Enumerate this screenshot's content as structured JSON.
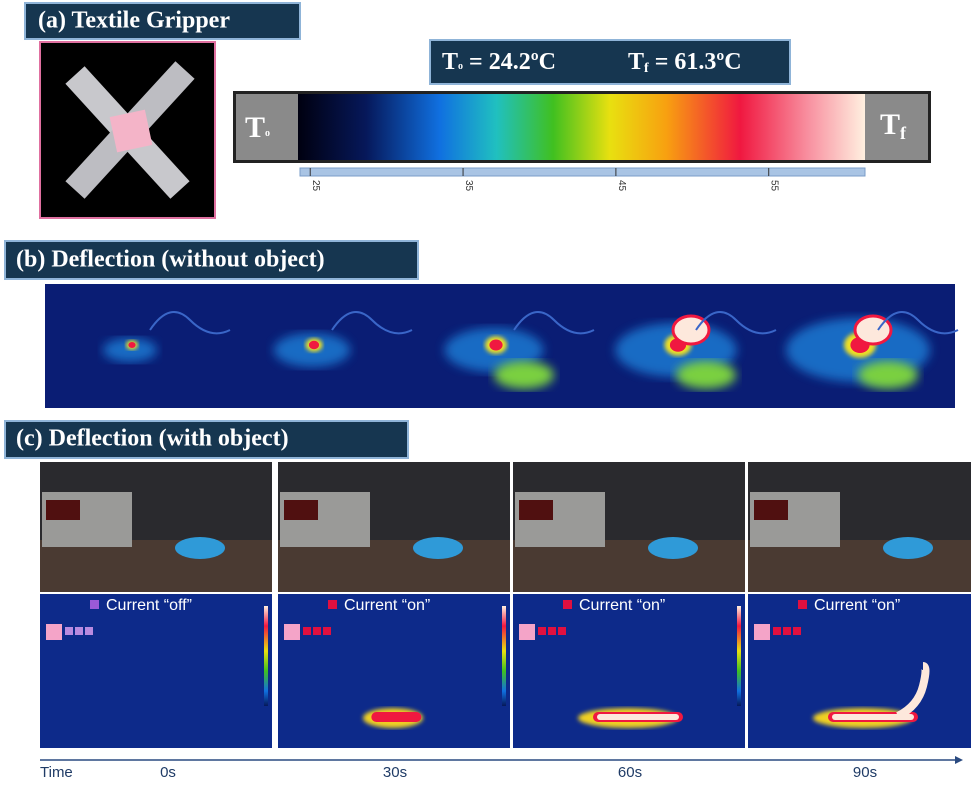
{
  "panel_a": {
    "title": "(a) Textile Gripper",
    "temp_initial": {
      "main": "T",
      "sub": "o",
      "rest": " = 24.2ºC"
    },
    "temp_final": {
      "main": "T",
      "sub": "f",
      "rest": " = 61.3ºC"
    },
    "colorbar": {
      "left_label": {
        "main": "T",
        "sub": "o"
      },
      "right_label": {
        "main": "T",
        "sub": "f"
      },
      "lim": [
        24.2,
        61.3
      ],
      "ticks": [
        25,
        35,
        45,
        55
      ]
    }
  },
  "panel_b": {
    "title": "(b) Deflection (without object)"
  },
  "panel_c": {
    "title": "(c) Deflection (with object)",
    "current_labels": [
      "Current “off”",
      "Current “on”",
      "Current “on”",
      "Current “on”"
    ],
    "time_axis": {
      "label": "Time",
      "times": [
        "0s",
        "30s",
        "60s",
        "90s"
      ]
    }
  }
}
